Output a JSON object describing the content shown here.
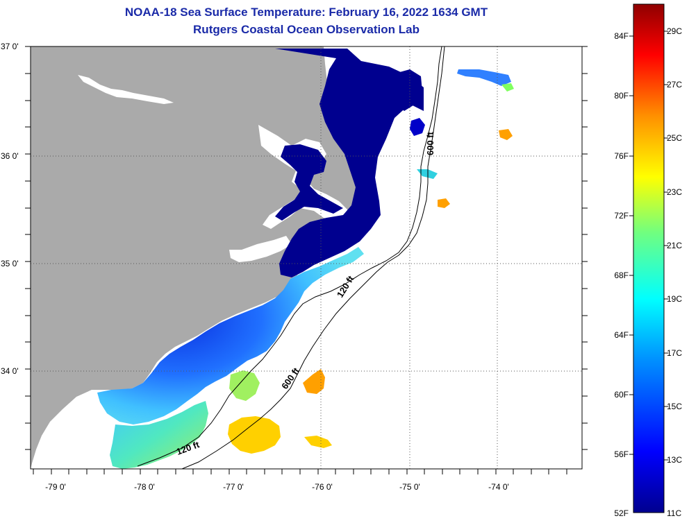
{
  "title": {
    "line1": "NOAA-18 Sea Surface Temperature:  February 16, 2022 1634 GMT",
    "line2": "Rutgers Coastal Ocean Observation Lab"
  },
  "colors": {
    "land": "#aaaaaa",
    "frame": "#000000",
    "grid": "#555555",
    "title": "#1a2aa8"
  },
  "map": {
    "lat_labels": [
      "37 0'",
      "36 0'",
      "35 0'",
      "34 0'"
    ],
    "lon_labels": [
      "-79 0'",
      "-78 0'",
      "-77 0'",
      "-76 0'",
      "-75 0'",
      "-74 0'"
    ],
    "contour_labels": [
      "600 ft",
      "120 ft",
      "600 ft",
      "120 ft"
    ]
  },
  "colorbar": {
    "fahrenheit_labels": [
      "84F",
      "80F",
      "76F",
      "72F",
      "68F",
      "64F",
      "60F",
      "56F",
      "52F"
    ],
    "celsius_labels": [
      "29C",
      "27C",
      "25C",
      "23C",
      "21C",
      "19C",
      "17C",
      "15C",
      "13C",
      "11C"
    ]
  }
}
